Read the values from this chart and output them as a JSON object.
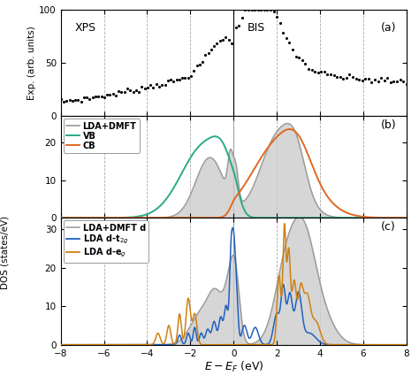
{
  "xlim": [
    -8,
    8
  ],
  "xps_ylim": [
    0,
    100
  ],
  "dos_b_ylim": [
    0,
    27
  ],
  "dos_c_ylim": [
    0,
    33
  ],
  "xlabel": "$E - E_F$ (eV)",
  "ylabel_top": "Exp. (arb. units)",
  "ylabel_dos": "DOS (states/eV)",
  "panel_labels": [
    "(a)",
    "(b)",
    "(c)"
  ],
  "dashed_x": [
    -6,
    -4,
    -2,
    0,
    2,
    4,
    6
  ],
  "xps_label": "XPS",
  "bis_label": "BIS",
  "legend_b_colors": [
    "#999999",
    "#2aaa88",
    "#e06820"
  ],
  "legend_c_colors": [
    "#999999",
    "#2060c0",
    "#d08010"
  ],
  "background_color": "#ffffff"
}
